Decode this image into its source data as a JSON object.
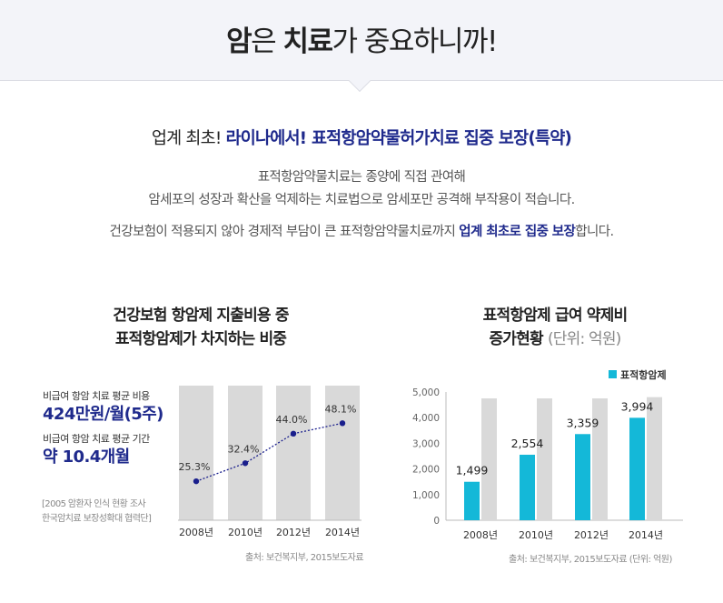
{
  "banner": {
    "title_part1": "암",
    "title_part2": "은 ",
    "title_part3": "치료",
    "title_part4": "가 중요하니까!"
  },
  "headline": {
    "prefix": "업계 최초! ",
    "highlight": "라이나에서! 표적항암약물허가치료 집중 보장(특약)"
  },
  "description": {
    "line1": "표적항암약물치료는 종양에 직접 관여해",
    "line2": "암세포의 성장과 확산을 억제하는 치료법으로 암세포만 공격해 부작용이 적습니다.",
    "line3_prefix": "건강보험이 적용되지 않아 경제적 부담이 큰 표적항암약물치료까지 ",
    "line3_highlight": "업계 최초로 집중 보장",
    "line3_suffix": "합니다."
  },
  "left_panel": {
    "title_line1": "건강보험 항암제 지출비용 중",
    "title_line2": "표적항암제가 차지하는 비중",
    "stat1_label": "비급여 항암 치료 평균 비용",
    "stat1_value": "424만원/월(5주)",
    "stat2_label": "비급여 항암 치료 평균 기간",
    "stat2_value": "약 10.4개월",
    "footnote_line1": "[2005 암환자 인식 현황 조사",
    "footnote_line2": "한국암치료 보장성확대 협력단]",
    "source": "출처: 보건복지부, 2015보도자료"
  },
  "right_panel": {
    "title_line1": "표적항암제 급여 약제비",
    "title_line2": "증가현황 ",
    "title_unit": "(단위: 억원)",
    "source": "출처: 보건복지부, 2015보도자료 (단위: 억원)"
  },
  "colors": {
    "accent_navy": "#1f2a8c",
    "bar_cyan": "#14b8d8",
    "bar_gray": "#d9d9d9",
    "line_navy": "#1a1f8c"
  },
  "chart_data": [
    {
      "type": "line",
      "title": "건강보험 항암제 지출비용 중 표적항암제가 차지하는 비중",
      "categories": [
        "2008년",
        "2010년",
        "2012년",
        "2014년"
      ],
      "values": [
        25.3,
        32.4,
        44.0,
        48.1
      ],
      "labels": [
        "25.3%",
        "32.4%",
        "44.0%",
        "48.1%"
      ],
      "unit": "%",
      "ylim": [
        0,
        100
      ],
      "background_bars": true,
      "grid": false
    },
    {
      "type": "bar",
      "title": "표적항암제 급여 약제비 증가현황 (단위: 억원)",
      "categories": [
        "2008년",
        "2010년",
        "2012년",
        "2014년"
      ],
      "series": [
        {
          "name": "표적항암제",
          "values": [
            1499,
            2554,
            3359,
            3994
          ]
        },
        {
          "name": "",
          "values": [
            4750,
            4750,
            4750,
            4800
          ]
        }
      ],
      "value_labels": [
        "1,499",
        "2,554",
        "3,359",
        "3,994"
      ],
      "yticks": [
        "0",
        "1,000",
        "2,000",
        "3,000",
        "4,000",
        "5,000"
      ],
      "ylim": [
        0,
        5000
      ],
      "legend": "top-right",
      "grid": false
    }
  ]
}
